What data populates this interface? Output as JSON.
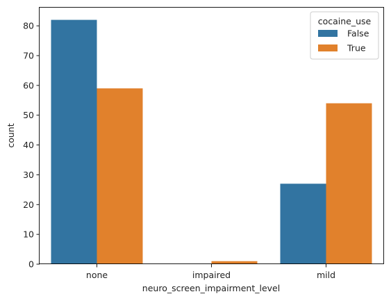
{
  "chart_data": {
    "type": "bar",
    "categories": [
      "none",
      "impaired",
      "mild"
    ],
    "series": [
      {
        "name": "False",
        "values": [
          82,
          0,
          27
        ],
        "color": "#3274a1"
      },
      {
        "name": "True",
        "values": [
          59,
          1,
          54
        ],
        "color": "#e1812c"
      }
    ],
    "xlabel": "neuro_screen_impairment_level",
    "ylabel": "count",
    "ylim": [
      0,
      86.1
    ],
    "yticks": [
      0,
      10,
      20,
      30,
      40,
      50,
      60,
      70,
      80
    ],
    "legend": {
      "title": "cocaine_use",
      "placement": "top-right"
    },
    "grid": false
  }
}
